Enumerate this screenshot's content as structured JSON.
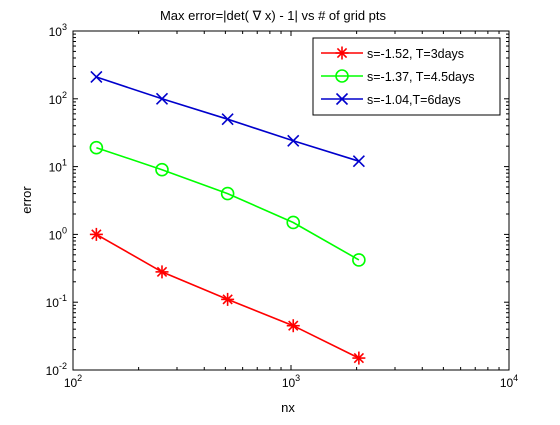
{
  "chart_data": {
    "type": "line",
    "title": "Max error=|det( ∇ x) - 1| vs # of grid pts",
    "xlabel": "nx",
    "ylabel": "error",
    "xscale": "log",
    "yscale": "log",
    "xlim": [
      100,
      10000
    ],
    "ylim": [
      0.01,
      1000
    ],
    "grid": false,
    "legend_position": "top-right",
    "xticks": [
      {
        "value": 100,
        "base": "10",
        "exp": "2"
      },
      {
        "value": 1000,
        "base": "10",
        "exp": "3"
      },
      {
        "value": 10000,
        "base": "10",
        "exp": "4"
      }
    ],
    "yticks": [
      {
        "value": 0.01,
        "base": "10",
        "exp": "-2"
      },
      {
        "value": 0.1,
        "base": "10",
        "exp": "-1"
      },
      {
        "value": 1,
        "base": "10",
        "exp": "0"
      },
      {
        "value": 10,
        "base": "10",
        "exp": "1"
      },
      {
        "value": 100,
        "base": "10",
        "exp": "2"
      },
      {
        "value": 1000,
        "base": "10",
        "exp": "3"
      }
    ],
    "series": [
      {
        "name": "s=-1.52, T=3days",
        "color": "#ff0000",
        "marker": "asterisk",
        "x": [
          128,
          256,
          512,
          1024,
          2048
        ],
        "y": [
          1.0,
          0.28,
          0.11,
          0.045,
          0.015
        ]
      },
      {
        "name": "s=-1.37, T=4.5days",
        "color": "#00ff00",
        "marker": "circle",
        "x": [
          128,
          256,
          512,
          1024,
          2048
        ],
        "y": [
          19,
          9,
          4,
          1.5,
          0.42
        ]
      },
      {
        "name": "s=-1.04,T=6days",
        "color": "#0000cc",
        "marker": "x",
        "x": [
          128,
          256,
          512,
          1024,
          2048
        ],
        "y": [
          210,
          100,
          50,
          24,
          12
        ]
      }
    ]
  }
}
